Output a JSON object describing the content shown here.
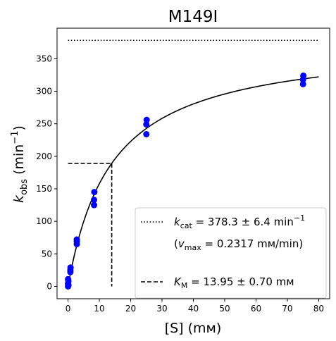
{
  "chart_data": {
    "type": "scatter",
    "title": "M149I",
    "xlabel": {
      "base": "[S] (",
      "unit": "mм",
      "close": ")"
    },
    "ylabel": {
      "k": "k",
      "sub": "obs",
      "rest": " (min",
      "sup": "−1",
      "close": ")"
    },
    "xlim": [
      -3.5,
      83.5
    ],
    "ylim": [
      -19,
      397
    ],
    "xticks": [
      0,
      10,
      20,
      30,
      40,
      50,
      60,
      70,
      80
    ],
    "yticks": [
      0,
      50,
      100,
      150,
      200,
      250,
      300,
      350
    ],
    "grid": false,
    "legend_position": "lower-right",
    "colors": {
      "points": "#0000ff",
      "fit": "#000000",
      "kcat_line": "#000000",
      "km_line": "#000000"
    },
    "series": [
      {
        "type": "scatter",
        "x": [
          0.0,
          0.0,
          0.0,
          0.05,
          0.1,
          0.1,
          0.75,
          0.75,
          0.8,
          2.8,
          2.8,
          2.8,
          8.3,
          8.3,
          8.4,
          25.0,
          25.0,
          25.1,
          75.0,
          75.0,
          75.1
        ],
        "y": [
          0,
          4,
          11,
          1,
          8,
          2,
          22,
          25,
          29,
          65,
          69,
          72,
          125,
          133,
          145,
          234,
          249,
          256,
          311,
          318,
          324
        ]
      },
      {
        "type": "line",
        "model": "michaelis-menten",
        "kcat": 378.3,
        "km": 13.95,
        "x_range": [
          0,
          80
        ]
      }
    ],
    "reference_lines": {
      "kcat": {
        "y": 378.3,
        "x_range": [
          0,
          80
        ],
        "style": "dotted"
      },
      "km": {
        "x": 13.95,
        "y": 189.15,
        "x_start": 0,
        "y_start": 0,
        "style": "dashed"
      }
    },
    "legend": [
      {
        "style": "dotted",
        "k": "k",
        "sub": "cat",
        "text": " = 378.3 ± 6.4 min",
        "sup": "−1"
      },
      {
        "style": "none",
        "open": "(",
        "v": "v",
        "sub": "max",
        "text": " = 0.2317 mм/min)"
      },
      {
        "style": "dashed",
        "k": "K",
        "sub": "M",
        "text": " = 13.95 ± 0.70 mм"
      }
    ]
  }
}
